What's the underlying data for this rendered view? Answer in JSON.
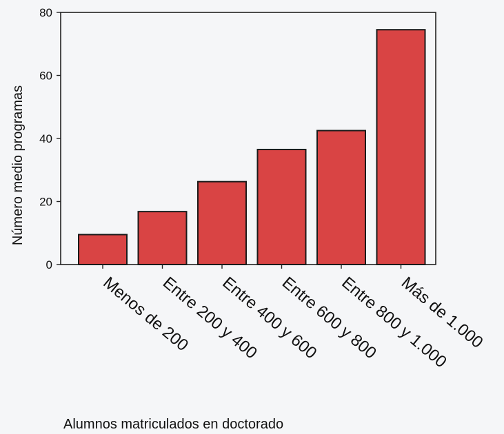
{
  "chart_data": {
    "type": "bar",
    "title": "",
    "xlabel": "Alumnos matriculados en doctorado",
    "ylabel": "Número medio programas",
    "categories": [
      "Menos de 200",
      "Entre 200 y 400",
      "Entre 400 y 600",
      "Entre 600 y 800",
      "Entre 800 y 1.000",
      "Más de 1.000"
    ],
    "values": [
      9.5,
      16.8,
      26.3,
      36.5,
      42.5,
      74.5
    ],
    "ylim": [
      0,
      80
    ],
    "yticks": [
      "0",
      "20",
      "40",
      "60",
      "80"
    ],
    "grid": false,
    "legend": "none",
    "bar_color": "#d94444",
    "bar_edge_color": "#1a1a1a"
  }
}
